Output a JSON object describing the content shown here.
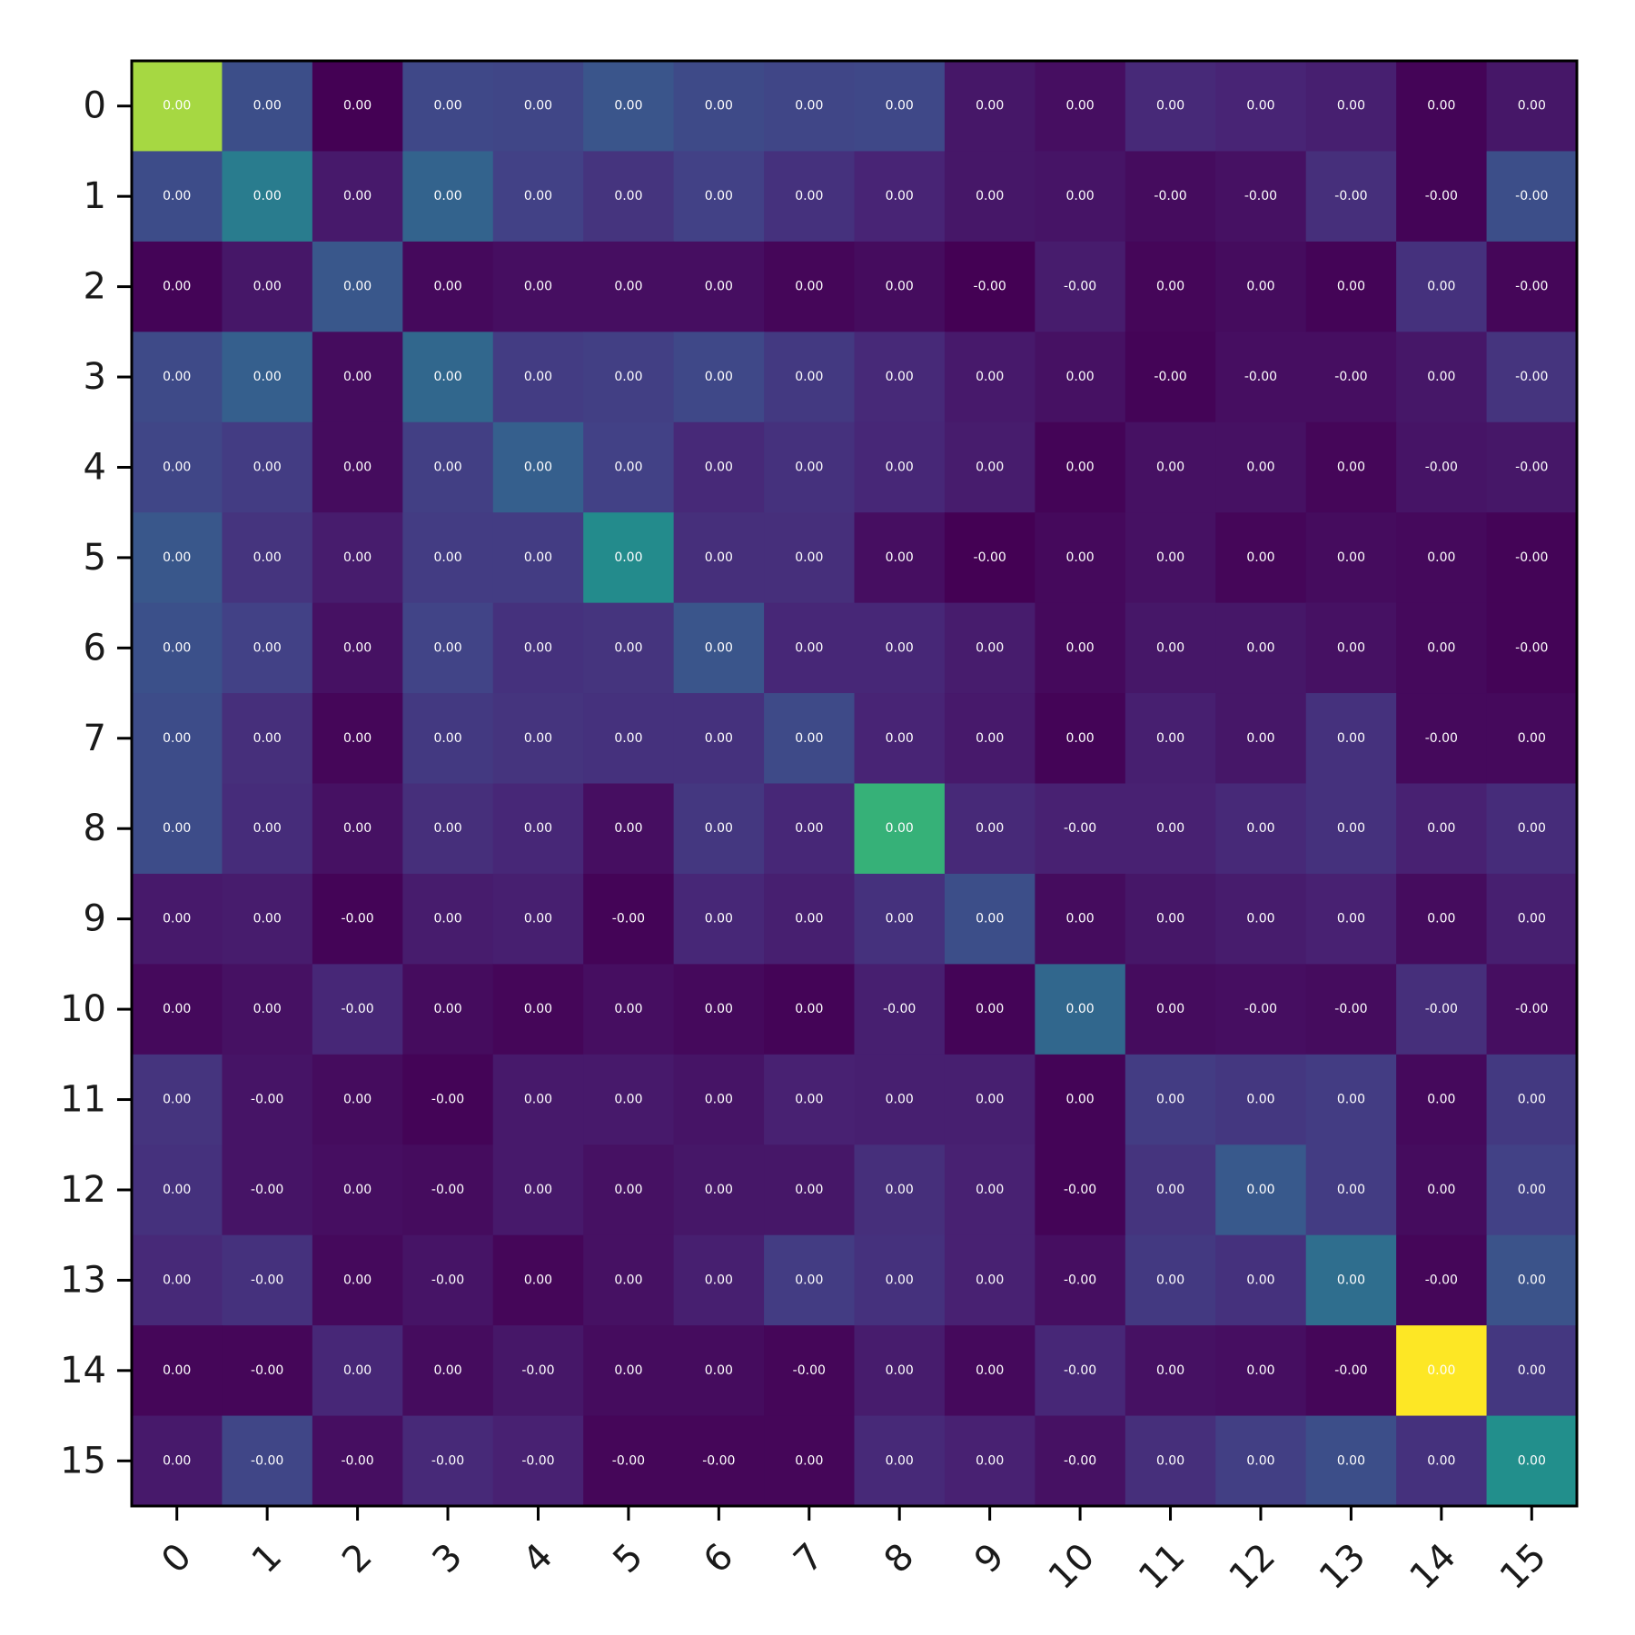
{
  "chart_data": {
    "type": "heatmap",
    "title": "",
    "xlabel": "",
    "ylabel": "",
    "x_ticks": [
      "0",
      "1",
      "2",
      "3",
      "4",
      "5",
      "6",
      "7",
      "8",
      "9",
      "10",
      "11",
      "12",
      "13",
      "14",
      "15"
    ],
    "y_ticks": [
      "0",
      "1",
      "2",
      "3",
      "4",
      "5",
      "6",
      "7",
      "8",
      "9",
      "10",
      "11",
      "12",
      "13",
      "14",
      "15"
    ],
    "colormap": "viridis",
    "color_range": [
      0,
      1
    ],
    "intensity": [
      [
        0.92,
        0.3,
        0.0,
        0.27,
        0.26,
        0.33,
        0.28,
        0.26,
        0.27,
        0.08,
        0.05,
        0.15,
        0.13,
        0.11,
        0.01,
        0.08
      ],
      [
        0.29,
        0.52,
        0.09,
        0.4,
        0.24,
        0.19,
        0.24,
        0.18,
        0.13,
        0.08,
        0.07,
        0.04,
        0.06,
        0.17,
        0.01,
        0.3
      ],
      [
        0.01,
        0.08,
        0.34,
        0.03,
        0.05,
        0.05,
        0.05,
        0.02,
        0.04,
        0.0,
        0.1,
        0.02,
        0.04,
        0.01,
        0.18,
        0.02
      ],
      [
        0.28,
        0.38,
        0.04,
        0.42,
        0.22,
        0.23,
        0.27,
        0.21,
        0.15,
        0.09,
        0.06,
        0.01,
        0.05,
        0.05,
        0.08,
        0.19
      ],
      [
        0.26,
        0.22,
        0.04,
        0.23,
        0.38,
        0.24,
        0.15,
        0.18,
        0.14,
        0.1,
        0.01,
        0.06,
        0.06,
        0.02,
        0.07,
        0.08
      ],
      [
        0.34,
        0.19,
        0.1,
        0.22,
        0.22,
        0.6,
        0.17,
        0.17,
        0.05,
        0.0,
        0.03,
        0.06,
        0.02,
        0.04,
        0.03,
        0.01
      ],
      [
        0.31,
        0.24,
        0.06,
        0.25,
        0.18,
        0.19,
        0.33,
        0.14,
        0.14,
        0.1,
        0.03,
        0.08,
        0.08,
        0.06,
        0.03,
        0.01
      ],
      [
        0.29,
        0.17,
        0.02,
        0.21,
        0.19,
        0.18,
        0.18,
        0.28,
        0.13,
        0.09,
        0.01,
        0.11,
        0.08,
        0.18,
        0.03,
        0.03
      ],
      [
        0.29,
        0.16,
        0.06,
        0.17,
        0.14,
        0.05,
        0.2,
        0.14,
        0.78,
        0.15,
        0.12,
        0.12,
        0.15,
        0.18,
        0.12,
        0.16
      ],
      [
        0.09,
        0.1,
        0.01,
        0.1,
        0.11,
        0.01,
        0.14,
        0.11,
        0.18,
        0.3,
        0.04,
        0.08,
        0.1,
        0.12,
        0.04,
        0.11
      ],
      [
        0.03,
        0.06,
        0.14,
        0.04,
        0.02,
        0.05,
        0.03,
        0.01,
        0.11,
        0.01,
        0.42,
        0.04,
        0.05,
        0.04,
        0.17,
        0.05
      ],
      [
        0.19,
        0.07,
        0.04,
        0.01,
        0.09,
        0.09,
        0.07,
        0.12,
        0.11,
        0.11,
        0.01,
        0.22,
        0.2,
        0.22,
        0.03,
        0.21
      ],
      [
        0.18,
        0.07,
        0.05,
        0.04,
        0.09,
        0.06,
        0.08,
        0.08,
        0.17,
        0.12,
        0.01,
        0.19,
        0.35,
        0.22,
        0.04,
        0.24
      ],
      [
        0.15,
        0.18,
        0.03,
        0.07,
        0.02,
        0.06,
        0.11,
        0.22,
        0.18,
        0.12,
        0.05,
        0.21,
        0.18,
        0.45,
        0.02,
        0.32
      ],
      [
        0.02,
        0.02,
        0.14,
        0.04,
        0.08,
        0.04,
        0.04,
        0.02,
        0.1,
        0.03,
        0.14,
        0.06,
        0.05,
        0.02,
        1.0,
        0.2
      ],
      [
        0.09,
        0.26,
        0.05,
        0.15,
        0.12,
        0.02,
        0.02,
        0.02,
        0.15,
        0.12,
        0.06,
        0.17,
        0.23,
        0.3,
        0.18,
        0.62
      ]
    ],
    "cell_labels": [
      [
        "0.00",
        "0.00",
        "0.00",
        "0.00",
        "0.00",
        "0.00",
        "0.00",
        "0.00",
        "0.00",
        "0.00",
        "0.00",
        "0.00",
        "0.00",
        "0.00",
        "0.00",
        "0.00"
      ],
      [
        "0.00",
        "0.00",
        "0.00",
        "0.00",
        "0.00",
        "0.00",
        "0.00",
        "0.00",
        "0.00",
        "0.00",
        "0.00",
        "-0.00",
        "-0.00",
        "-0.00",
        "-0.00",
        "-0.00"
      ],
      [
        "0.00",
        "0.00",
        "0.00",
        "0.00",
        "0.00",
        "0.00",
        "0.00",
        "0.00",
        "0.00",
        "-0.00",
        "-0.00",
        "0.00",
        "0.00",
        "0.00",
        "0.00",
        "-0.00"
      ],
      [
        "0.00",
        "0.00",
        "0.00",
        "0.00",
        "0.00",
        "0.00",
        "0.00",
        "0.00",
        "0.00",
        "0.00",
        "0.00",
        "-0.00",
        "-0.00",
        "-0.00",
        "0.00",
        "-0.00"
      ],
      [
        "0.00",
        "0.00",
        "0.00",
        "0.00",
        "0.00",
        "0.00",
        "0.00",
        "0.00",
        "0.00",
        "0.00",
        "0.00",
        "0.00",
        "0.00",
        "0.00",
        "-0.00",
        "-0.00"
      ],
      [
        "0.00",
        "0.00",
        "0.00",
        "0.00",
        "0.00",
        "0.00",
        "0.00",
        "0.00",
        "0.00",
        "-0.00",
        "0.00",
        "0.00",
        "0.00",
        "0.00",
        "0.00",
        "-0.00"
      ],
      [
        "0.00",
        "0.00",
        "0.00",
        "0.00",
        "0.00",
        "0.00",
        "0.00",
        "0.00",
        "0.00",
        "0.00",
        "0.00",
        "0.00",
        "0.00",
        "0.00",
        "0.00",
        "-0.00"
      ],
      [
        "0.00",
        "0.00",
        "0.00",
        "0.00",
        "0.00",
        "0.00",
        "0.00",
        "0.00",
        "0.00",
        "0.00",
        "0.00",
        "0.00",
        "0.00",
        "0.00",
        "-0.00",
        "0.00"
      ],
      [
        "0.00",
        "0.00",
        "0.00",
        "0.00",
        "0.00",
        "0.00",
        "0.00",
        "0.00",
        "0.00",
        "0.00",
        "-0.00",
        "0.00",
        "0.00",
        "0.00",
        "0.00",
        "0.00"
      ],
      [
        "0.00",
        "0.00",
        "-0.00",
        "0.00",
        "0.00",
        "-0.00",
        "0.00",
        "0.00",
        "0.00",
        "0.00",
        "0.00",
        "0.00",
        "0.00",
        "0.00",
        "0.00",
        "0.00"
      ],
      [
        "0.00",
        "0.00",
        "-0.00",
        "0.00",
        "0.00",
        "0.00",
        "0.00",
        "0.00",
        "-0.00",
        "0.00",
        "0.00",
        "0.00",
        "-0.00",
        "-0.00",
        "-0.00",
        "-0.00"
      ],
      [
        "0.00",
        "-0.00",
        "0.00",
        "-0.00",
        "0.00",
        "0.00",
        "0.00",
        "0.00",
        "0.00",
        "0.00",
        "0.00",
        "0.00",
        "0.00",
        "0.00",
        "0.00",
        "0.00"
      ],
      [
        "0.00",
        "-0.00",
        "0.00",
        "-0.00",
        "0.00",
        "0.00",
        "0.00",
        "0.00",
        "0.00",
        "0.00",
        "-0.00",
        "0.00",
        "0.00",
        "0.00",
        "0.00",
        "0.00"
      ],
      [
        "0.00",
        "-0.00",
        "0.00",
        "-0.00",
        "0.00",
        "0.00",
        "0.00",
        "0.00",
        "0.00",
        "0.00",
        "-0.00",
        "0.00",
        "0.00",
        "0.00",
        "-0.00",
        "0.00"
      ],
      [
        "0.00",
        "-0.00",
        "0.00",
        "0.00",
        "-0.00",
        "0.00",
        "0.00",
        "-0.00",
        "0.00",
        "0.00",
        "-0.00",
        "0.00",
        "0.00",
        "-0.00",
        "0.00",
        "0.00"
      ],
      [
        "0.00",
        "-0.00",
        "-0.00",
        "-0.00",
        "-0.00",
        "-0.00",
        "-0.00",
        "0.00",
        "0.00",
        "0.00",
        "-0.00",
        "0.00",
        "0.00",
        "0.00",
        "0.00",
        "0.00"
      ]
    ],
    "grid": false,
    "legend": "none"
  }
}
